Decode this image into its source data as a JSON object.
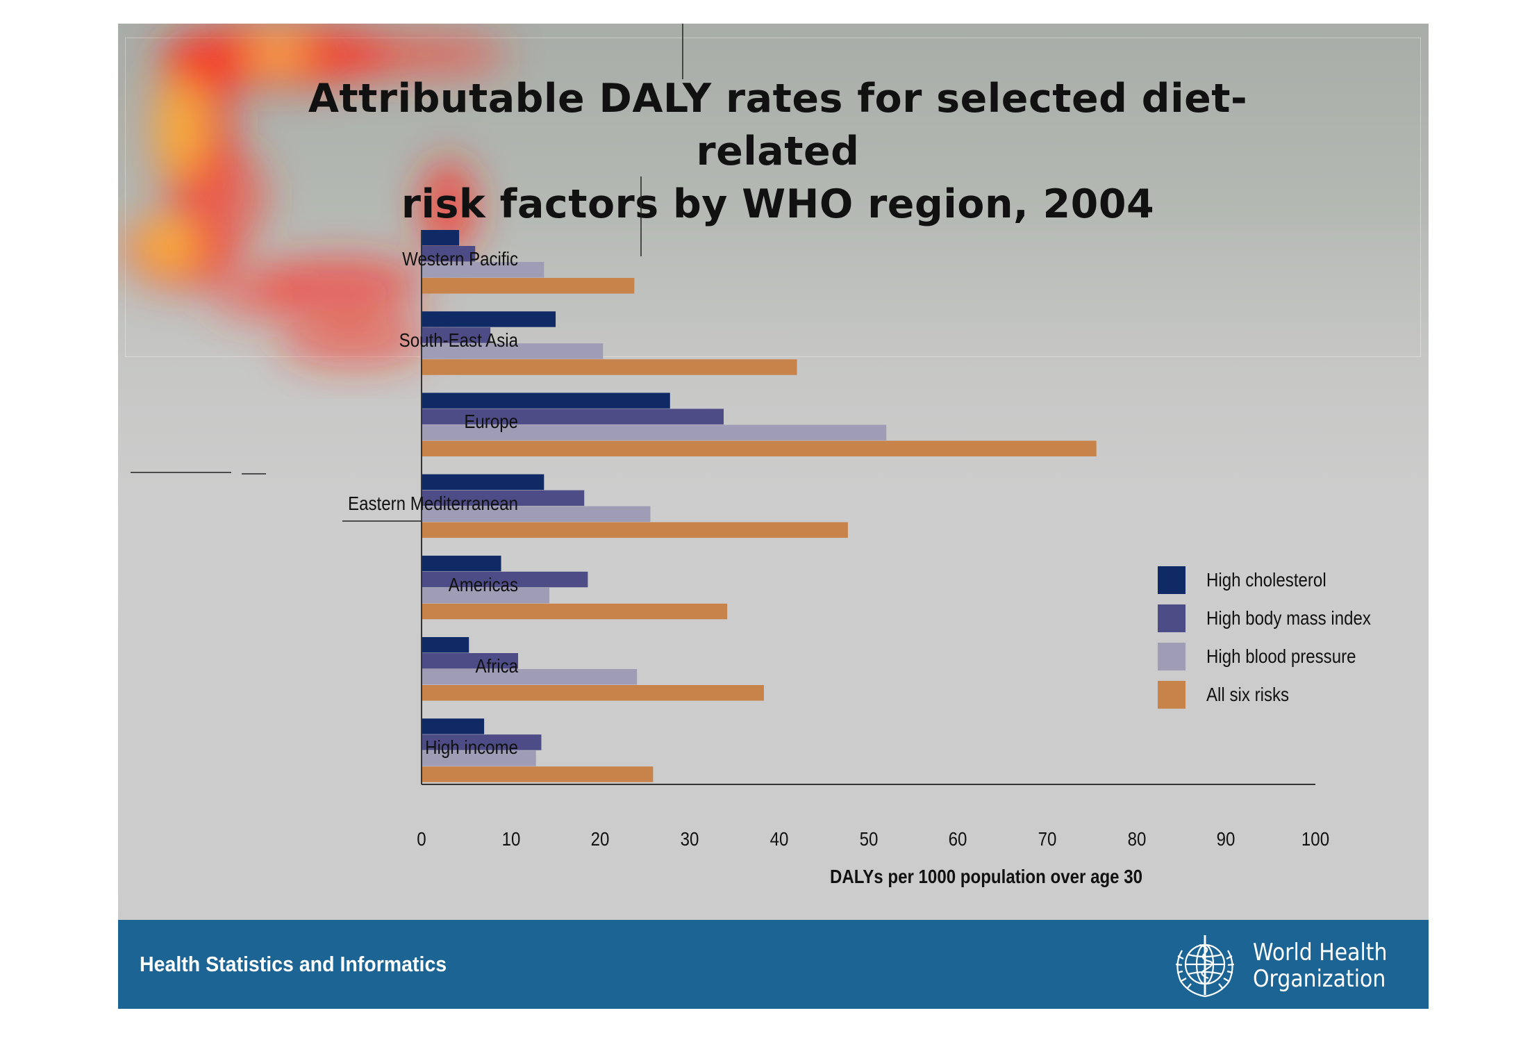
{
  "chart_data": {
    "type": "bar",
    "orientation": "horizontal",
    "title_lines": [
      "Attributable DALY rates for selected diet-related",
      "risk factors by WHO region, 2004"
    ],
    "categories": [
      "Western Pacific",
      "South-East Asia",
      "Europe",
      "Eastern Mediterranean",
      "Americas",
      "Africa",
      "High income"
    ],
    "series": [
      {
        "name": "High cholesterol",
        "color": "#102a66",
        "values": [
          4.2,
          15,
          27.8,
          13.7,
          8.9,
          5.3,
          7
        ]
      },
      {
        "name": "High body mass index",
        "color": "#4e4c86",
        "values": [
          6,
          7.7,
          33.8,
          18.2,
          18.6,
          10.8,
          13.4
        ]
      },
      {
        "name": "High blood pressure",
        "color": "#9f9db6",
        "values": [
          13.7,
          20.3,
          52,
          25.6,
          14.3,
          24.1,
          12.8
        ]
      },
      {
        "name": "All six risks",
        "color": "#c8834a",
        "values": [
          23.8,
          42,
          75.5,
          47.7,
          34.2,
          38.3,
          25.9
        ]
      }
    ],
    "xlabel": "DALYs per 1000 population over age 30",
    "ylabel": "",
    "xlim": [
      0,
      100
    ],
    "xticks": [
      "0",
      "10",
      "20",
      "30",
      "40",
      "50",
      "60",
      "70",
      "80",
      "90",
      "100"
    ],
    "grid": false,
    "legend_position": "right"
  },
  "footer": {
    "text": "Health Statistics and Informatics",
    "org_name_lines": [
      "World Health",
      "Organization"
    ],
    "emblem_icon": "who-emblem-icon"
  }
}
